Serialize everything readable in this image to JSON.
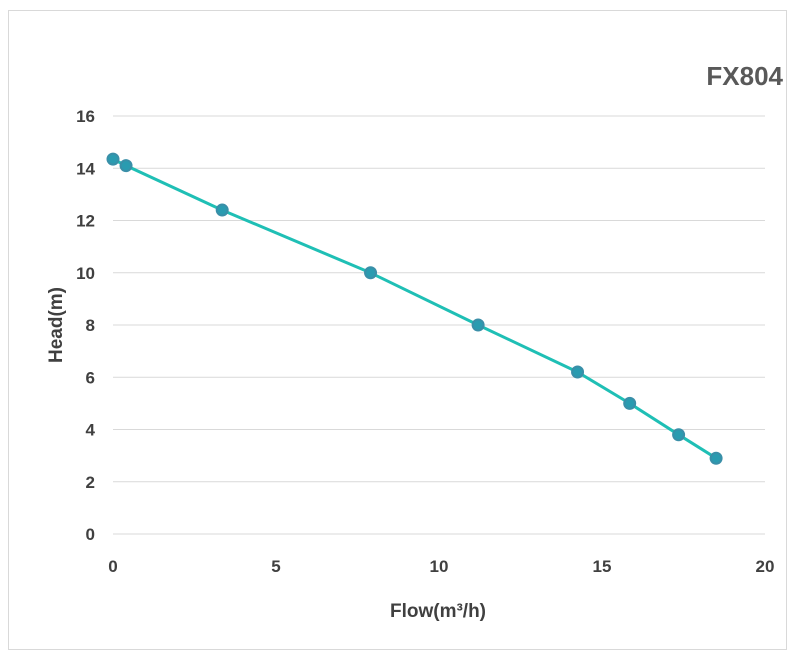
{
  "chart_data": {
    "type": "line",
    "title": "FX804",
    "xlabel": "Flow(m³/h)",
    "ylabel": "Head(m)",
    "xlim": [
      0,
      20
    ],
    "ylim": [
      0,
      16
    ],
    "x_ticks": [
      "0",
      "5",
      "10",
      "15",
      "20"
    ],
    "y_ticks": [
      "0",
      "2",
      "4",
      "6",
      "8",
      "10",
      "12",
      "14",
      "16"
    ],
    "grid": "horizontal",
    "legend": "none",
    "series": [
      {
        "color": "#1fbfb5",
        "marker_color": "#2a9bb0",
        "x": [
          0.0,
          0.4,
          3.35,
          7.9,
          11.2,
          14.25,
          15.85,
          17.35,
          18.5
        ],
        "y": [
          14.35,
          14.1,
          12.4,
          10.0,
          8.0,
          6.2,
          5.0,
          3.8,
          2.9
        ]
      }
    ]
  }
}
